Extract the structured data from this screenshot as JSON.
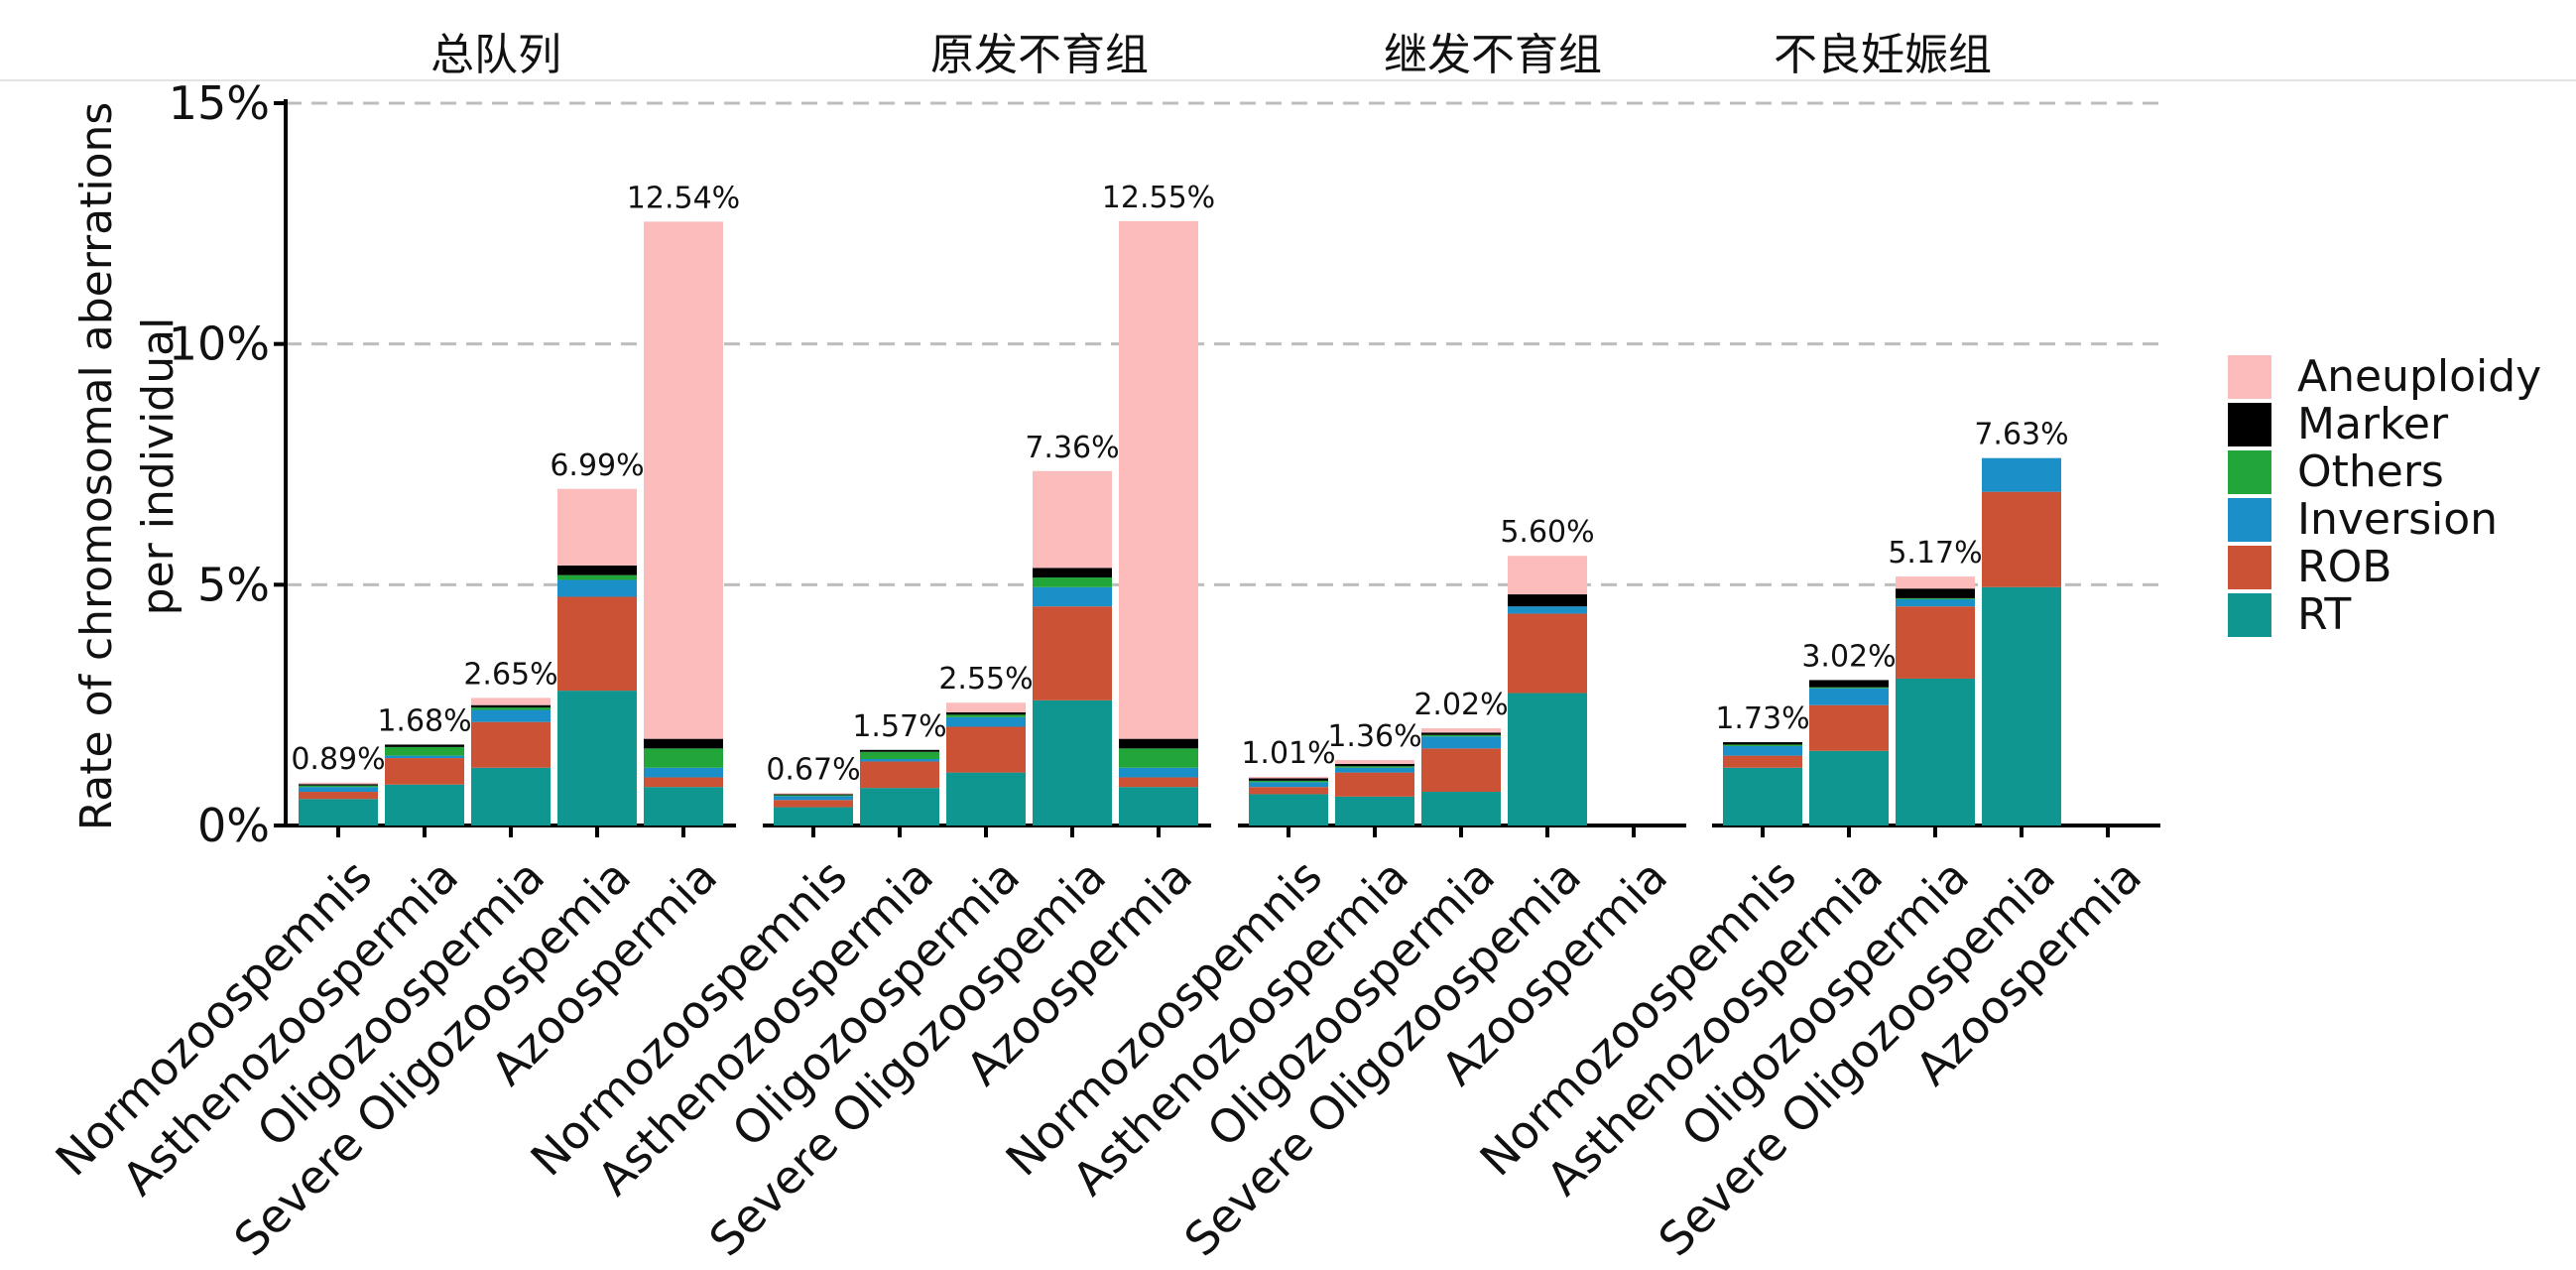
{
  "chart_data": {
    "type": "bar",
    "stacked": true,
    "ylabel": "Rate of chromosomal aberrations per individual",
    "ylabel_lines": [
      "Rate of chromosomal aberrations",
      "per individual"
    ],
    "ylim": [
      0,
      15
    ],
    "yticks": [
      0,
      5,
      10,
      15
    ],
    "ytick_labels": [
      "0%",
      "5%",
      "10%",
      "15%"
    ],
    "grid": "dashed horizontal at 5%, 10%, 15%",
    "legend_position": "right",
    "categories": [
      "Normozoospemnis",
      "Asthenozoospermia",
      "Oligozoospermia",
      "Severe Oligozoospemia",
      "Azoospermia"
    ],
    "series": [
      {
        "name": "RT",
        "color": "#0f9690"
      },
      {
        "name": "ROB",
        "color": "#cc5236"
      },
      {
        "name": "Inversion",
        "color": "#1a8fc8"
      },
      {
        "name": "Others",
        "color": "#22a63a"
      },
      {
        "name": "Marker",
        "color": "#000000"
      },
      {
        "name": "Aneuploidy",
        "color": "#fdbcbc"
      }
    ],
    "legend_order": [
      "Aneuploidy",
      "Marker",
      "Others",
      "Inversion",
      "ROB",
      "RT"
    ],
    "panels": [
      {
        "title": "总队列",
        "bars": [
          {
            "category": "Normozoospemnis",
            "total_label": "0.89%",
            "values": {
              "RT": 0.55,
              "ROB": 0.15,
              "Inversion": 0.1,
              "Others": 0.03,
              "Marker": 0.03,
              "Aneuploidy": 0.03
            }
          },
          {
            "category": "Asthenozoospermia",
            "total_label": "1.68%",
            "values": {
              "RT": 0.85,
              "ROB": 0.55,
              "Inversion": 0.05,
              "Others": 0.18,
              "Marker": 0.05,
              "Aneuploidy": 0.0
            }
          },
          {
            "category": "Oligozoospermia",
            "total_label": "2.65%",
            "values": {
              "RT": 1.2,
              "ROB": 0.95,
              "Inversion": 0.25,
              "Others": 0.05,
              "Marker": 0.05,
              "Aneuploidy": 0.15
            }
          },
          {
            "category": "Severe Oligozoospemia",
            "total_label": "6.99%",
            "values": {
              "RT": 2.8,
              "ROB": 1.95,
              "Inversion": 0.35,
              "Others": 0.1,
              "Marker": 0.2,
              "Aneuploidy": 1.59
            }
          },
          {
            "category": "Azoospermia",
            "total_label": "12.54%",
            "values": {
              "RT": 0.8,
              "ROB": 0.2,
              "Inversion": 0.2,
              "Others": 0.4,
              "Marker": 0.2,
              "Aneuploidy": 10.74
            }
          }
        ]
      },
      {
        "title": "原发不育组",
        "bars": [
          {
            "category": "Normozoospemnis",
            "total_label": "0.67%",
            "values": {
              "RT": 0.38,
              "ROB": 0.15,
              "Inversion": 0.08,
              "Others": 0.02,
              "Marker": 0.02,
              "Aneuploidy": 0.02
            }
          },
          {
            "category": "Asthenozoospermia",
            "total_label": "1.57%",
            "values": {
              "RT": 0.78,
              "ROB": 0.55,
              "Inversion": 0.05,
              "Others": 0.15,
              "Marker": 0.04,
              "Aneuploidy": 0.0
            }
          },
          {
            "category": "Oligozoospermia",
            "total_label": "2.55%",
            "values": {
              "RT": 1.1,
              "ROB": 0.95,
              "Inversion": 0.2,
              "Others": 0.05,
              "Marker": 0.05,
              "Aneuploidy": 0.2
            }
          },
          {
            "category": "Severe Oligozoospemia",
            "total_label": "7.36%",
            "values": {
              "RT": 2.6,
              "ROB": 1.95,
              "Inversion": 0.4,
              "Others": 0.2,
              "Marker": 0.2,
              "Aneuploidy": 2.01
            }
          },
          {
            "category": "Azoospermia",
            "total_label": "12.55%",
            "values": {
              "RT": 0.8,
              "ROB": 0.2,
              "Inversion": 0.2,
              "Others": 0.4,
              "Marker": 0.2,
              "Aneuploidy": 10.75
            }
          }
        ]
      },
      {
        "title": "继发不育组",
        "bars": [
          {
            "category": "Normozoospemnis",
            "total_label": "1.01%",
            "values": {
              "RT": 0.65,
              "ROB": 0.15,
              "Inversion": 0.1,
              "Others": 0.03,
              "Marker": 0.05,
              "Aneuploidy": 0.03
            }
          },
          {
            "category": "Asthenozoospermia",
            "total_label": "1.36%",
            "values": {
              "RT": 0.6,
              "ROB": 0.5,
              "Inversion": 0.1,
              "Others": 0.03,
              "Marker": 0.05,
              "Aneuploidy": 0.08
            }
          },
          {
            "category": "Oligozoospermia",
            "total_label": "2.02%",
            "values": {
              "RT": 0.7,
              "ROB": 0.9,
              "Inversion": 0.25,
              "Others": 0.03,
              "Marker": 0.05,
              "Aneuploidy": 0.09
            }
          },
          {
            "category": "Severe Oligozoospemia",
            "total_label": "5.60%",
            "values": {
              "RT": 2.75,
              "ROB": 1.65,
              "Inversion": 0.15,
              "Others": 0.0,
              "Marker": 0.25,
              "Aneuploidy": 0.8
            }
          },
          {
            "category": "Azoospermia",
            "total_label": "",
            "values": {
              "RT": 0,
              "ROB": 0,
              "Inversion": 0,
              "Others": 0,
              "Marker": 0,
              "Aneuploidy": 0
            }
          }
        ]
      },
      {
        "title": "不良妊娠组",
        "bars": [
          {
            "category": "Normozoospemnis",
            "total_label": "1.73%",
            "values": {
              "RT": 1.2,
              "ROB": 0.25,
              "Inversion": 0.2,
              "Others": 0.03,
              "Marker": 0.05,
              "Aneuploidy": 0.0
            }
          },
          {
            "category": "Asthenozoospermia",
            "total_label": "3.02%",
            "values": {
              "RT": 1.55,
              "ROB": 0.95,
              "Inversion": 0.35,
              "Others": 0.02,
              "Marker": 0.15,
              "Aneuploidy": 0.0
            }
          },
          {
            "category": "Oligozoospermia",
            "total_label": "5.17%",
            "values": {
              "RT": 3.05,
              "ROB": 1.5,
              "Inversion": 0.15,
              "Others": 0.02,
              "Marker": 0.2,
              "Aneuploidy": 0.25
            }
          },
          {
            "category": "Severe Oligozoospemia",
            "total_label": "7.63%",
            "values": {
              "RT": 4.95,
              "ROB": 1.98,
              "Inversion": 0.7,
              "Others": 0.0,
              "Marker": 0.0,
              "Aneuploidy": 0.0
            }
          },
          {
            "category": "Azoospermia",
            "total_label": "",
            "values": {
              "RT": 0,
              "ROB": 0,
              "Inversion": 0,
              "Others": 0,
              "Marker": 0,
              "Aneuploidy": 0
            }
          }
        ]
      }
    ]
  }
}
